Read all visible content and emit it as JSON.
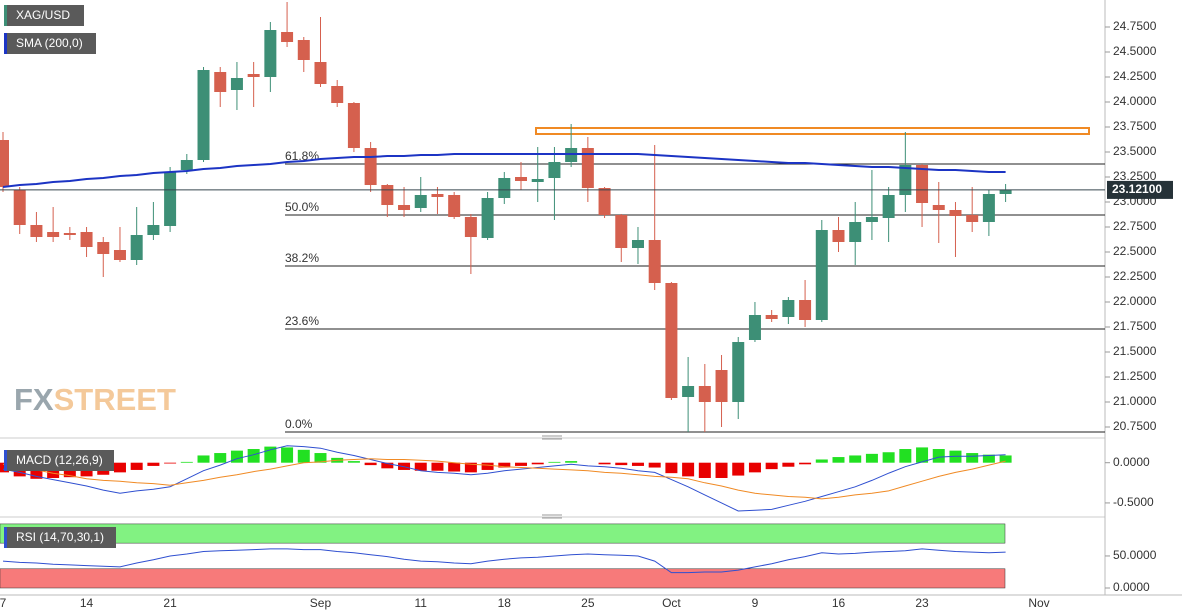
{
  "chart_data": [
    {
      "type": "candlestick",
      "categories": [
        "7",
        null,
        null,
        null,
        null,
        "14",
        null,
        null,
        null,
        null,
        "21",
        null,
        null,
        null,
        null,
        null,
        null,
        null,
        null,
        "Sep",
        null,
        null,
        null,
        null,
        null,
        "11",
        null,
        null,
        null,
        null,
        "18",
        null,
        null,
        null,
        null,
        "25",
        null,
        null,
        null,
        null,
        "Oct",
        null,
        null,
        null,
        null,
        "9",
        null,
        null,
        null,
        null,
        "16",
        null,
        null,
        null,
        null,
        "23",
        null,
        null,
        null,
        null,
        null,
        null,
        "Nov"
      ],
      "series": [
        {
          "name": "XAG/USD",
          "up_color": "#3d8f76",
          "down_color": "#d5604e",
          "open": [
            23.62,
            23.12,
            22.77,
            22.7,
            22.69,
            22.7,
            22.6,
            22.52,
            22.42,
            22.67,
            22.76,
            23.32,
            23.42,
            24.3,
            24.12,
            24.28,
            24.25,
            24.7,
            24.62,
            24.4,
            24.16,
            23.99,
            23.54,
            23.17,
            22.97,
            22.94,
            23.08,
            23.07,
            22.85,
            22.64,
            23.04,
            23.25,
            23.2,
            23.24,
            23.4,
            23.54,
            23.14,
            22.87,
            22.54,
            22.62,
            22.19,
            21.05,
            21.16,
            21.32,
            21.0,
            21.62,
            21.87,
            21.85,
            22.02,
            21.82,
            22.72,
            22.6,
            22.8,
            22.84,
            23.07,
            23.37,
            22.97,
            22.92,
            22.87,
            22.8,
            23.08,
            null,
            null
          ],
          "high": [
            23.7,
            23.15,
            22.9,
            22.95,
            22.75,
            22.75,
            22.65,
            22.75,
            22.95,
            23.0,
            23.35,
            23.48,
            24.35,
            24.35,
            24.4,
            24.4,
            24.8,
            25.0,
            24.65,
            24.85,
            24.22,
            24.0,
            23.6,
            23.18,
            23.15,
            23.25,
            23.15,
            23.1,
            22.88,
            23.1,
            23.3,
            23.4,
            23.55,
            23.55,
            23.78,
            23.65,
            23.15,
            22.88,
            22.75,
            23.57,
            22.2,
            21.45,
            21.38,
            21.47,
            21.65,
            22.0,
            21.92,
            22.05,
            22.22,
            22.82,
            22.85,
            23.0,
            23.32,
            23.15,
            23.7,
            23.38,
            23.2,
            23.0,
            23.15,
            23.12,
            23.18,
            null,
            null
          ],
          "low": [
            23.1,
            22.68,
            22.6,
            22.6,
            22.62,
            22.45,
            22.25,
            22.4,
            22.37,
            22.62,
            22.7,
            23.28,
            23.4,
            23.95,
            23.92,
            23.95,
            24.1,
            24.55,
            24.3,
            24.15,
            23.95,
            23.5,
            23.1,
            22.85,
            22.85,
            22.9,
            22.88,
            22.83,
            22.28,
            22.62,
            22.98,
            23.12,
            23.0,
            22.82,
            23.35,
            23.0,
            22.84,
            22.4,
            22.38,
            22.12,
            21.02,
            20.7,
            20.7,
            20.75,
            20.83,
            21.6,
            21.8,
            21.78,
            21.75,
            21.8,
            22.5,
            22.37,
            22.62,
            22.6,
            22.9,
            22.75,
            22.59,
            22.45,
            22.7,
            22.66,
            23.0,
            null,
            null
          ],
          "close": [
            23.15,
            22.77,
            22.65,
            22.65,
            22.67,
            22.55,
            22.48,
            22.42,
            22.67,
            22.77,
            23.3,
            23.42,
            24.32,
            24.1,
            24.24,
            24.25,
            24.72,
            24.6,
            24.42,
            24.18,
            23.99,
            23.54,
            23.17,
            22.97,
            22.92,
            23.07,
            23.05,
            22.85,
            22.65,
            23.04,
            23.24,
            23.21,
            23.23,
            23.4,
            23.54,
            23.14,
            22.87,
            22.54,
            22.62,
            22.19,
            21.04,
            21.16,
            21.0,
            21.0,
            21.6,
            21.87,
            21.83,
            22.02,
            21.82,
            22.72,
            22.6,
            22.8,
            22.85,
            23.07,
            23.37,
            22.99,
            22.92,
            22.86,
            22.8,
            23.08,
            23.12,
            null,
            null
          ]
        },
        {
          "name": "SMA (200,0)",
          "type": "line",
          "color": "#1c34c4",
          "values": [
            23.15,
            23.17,
            23.18,
            23.2,
            23.21,
            23.23,
            23.24,
            23.26,
            23.27,
            23.29,
            23.3,
            23.31,
            23.33,
            23.34,
            23.36,
            23.37,
            23.38,
            23.4,
            23.41,
            23.43,
            23.44,
            23.45,
            23.45,
            23.46,
            23.46,
            23.47,
            23.47,
            23.48,
            23.48,
            23.48,
            23.48,
            23.48,
            23.48,
            23.48,
            23.48,
            23.48,
            23.48,
            23.48,
            23.48,
            23.47,
            23.46,
            23.45,
            23.44,
            23.43,
            23.42,
            23.41,
            23.4,
            23.39,
            23.39,
            23.38,
            23.37,
            23.36,
            23.35,
            23.35,
            23.34,
            23.33,
            23.32,
            23.32,
            23.31,
            23.3,
            23.3,
            null,
            null
          ]
        }
      ],
      "ylim": [
        20.67,
        25.02
      ],
      "yticks": [
        {
          "value": 20.75,
          "label": "20.7500"
        },
        {
          "value": 21,
          "label": "21.0000"
        },
        {
          "value": 21.25,
          "label": "21.2500"
        },
        {
          "value": 21.5,
          "label": "21.5000"
        },
        {
          "value": 21.75,
          "label": "21.7500"
        },
        {
          "value": 22,
          "label": "22.0000"
        },
        {
          "value": 22.25,
          "label": "22.2500"
        },
        {
          "value": 22.5,
          "label": "22.5000"
        },
        {
          "value": 22.75,
          "label": "22.7500"
        },
        {
          "value": 23,
          "label": "23.0000"
        },
        {
          "value": 23.25,
          "label": "23.2500"
        },
        {
          "value": 23.5,
          "label": "23.5000"
        },
        {
          "value": 23.75,
          "label": "23.7500"
        },
        {
          "value": 24,
          "label": "24.0000"
        },
        {
          "value": 24.25,
          "label": "24.2500"
        },
        {
          "value": 24.5,
          "label": "24.5000"
        },
        {
          "value": 24.75,
          "label": "24.7500"
        }
      ],
      "last_price": {
        "value": 23.121,
        "label": "23.12100"
      },
      "fib_levels": [
        {
          "value": 23.38,
          "label": "61.8%"
        },
        {
          "value": 22.87,
          "label": "50.0%"
        },
        {
          "value": 22.36,
          "label": "38.2%"
        },
        {
          "value": 21.73,
          "label": "23.6%"
        },
        {
          "value": 20.7,
          "label": "0.0%"
        }
      ],
      "zone": {
        "low": 23.68,
        "high": 23.74,
        "color": "#f08a24"
      },
      "watermark": [
        "FX",
        "STREET"
      ]
    },
    {
      "type": "macd",
      "title": "MACD (12,26,9)",
      "histogram": {
        "up_color": "#22e022",
        "down_color": "#e80000",
        "values": [
          -0.12,
          -0.17,
          -0.2,
          -0.19,
          -0.18,
          -0.17,
          -0.15,
          -0.12,
          -0.09,
          -0.04,
          -0.01,
          0.01,
          0.09,
          0.12,
          0.15,
          0.17,
          0.2,
          0.19,
          0.16,
          0.12,
          0.06,
          0.02,
          -0.03,
          -0.07,
          -0.09,
          -0.1,
          -0.1,
          -0.11,
          -0.12,
          -0.09,
          -0.06,
          -0.04,
          -0.02,
          0.01,
          0.02,
          0,
          -0.02,
          -0.03,
          -0.04,
          -0.06,
          -0.13,
          -0.17,
          -0.19,
          -0.19,
          -0.16,
          -0.12,
          -0.08,
          -0.05,
          -0.02,
          0.04,
          0.07,
          0.09,
          0.11,
          0.13,
          0.17,
          0.19,
          0.17,
          0.15,
          0.12,
          0.1,
          0.09,
          null,
          null
        ]
      },
      "series": [
        {
          "color": "#2f4fd0",
          "values": [
            -0.08,
            -0.12,
            -0.17,
            -0.21,
            -0.25,
            -0.29,
            -0.34,
            -0.38,
            -0.35,
            -0.33,
            -0.3,
            -0.2,
            -0.1,
            -0.03,
            0.05,
            0.1,
            0.16,
            0.21,
            0.2,
            0.18,
            0.13,
            0.09,
            0.04,
            -0.01,
            -0.05,
            -0.1,
            -0.12,
            -0.13,
            -0.15,
            -0.13,
            -0.1,
            -0.08,
            -0.06,
            -0.04,
            -0.02,
            -0.04,
            -0.05,
            -0.07,
            -0.1,
            -0.12,
            -0.21,
            -0.3,
            -0.4,
            -0.5,
            -0.6,
            -0.59,
            -0.58,
            -0.53,
            -0.48,
            -0.42,
            -0.36,
            -0.3,
            -0.22,
            -0.13,
            -0.05,
            0.01,
            0.07,
            0.08,
            0.08,
            0.09,
            0.1,
            null,
            null
          ]
        },
        {
          "color": "#f08a24",
          "values": [
            -0.02,
            -0.06,
            -0.09,
            -0.13,
            -0.16,
            -0.2,
            -0.22,
            -0.23,
            -0.25,
            -0.26,
            -0.28,
            -0.25,
            -0.22,
            -0.18,
            -0.15,
            -0.11,
            -0.08,
            -0.04,
            0,
            0.01,
            0.03,
            0.04,
            0.05,
            0.04,
            0.04,
            0.03,
            0.02,
            0,
            -0.02,
            -0.03,
            -0.05,
            -0.06,
            -0.07,
            -0.08,
            -0.09,
            -0.1,
            -0.12,
            -0.13,
            -0.15,
            -0.17,
            -0.18,
            -0.2,
            -0.25,
            -0.29,
            -0.34,
            -0.38,
            -0.4,
            -0.42,
            -0.43,
            -0.45,
            -0.43,
            -0.4,
            -0.38,
            -0.35,
            -0.29,
            -0.23,
            -0.17,
            -0.12,
            -0.08,
            -0.03,
            0.02,
            null,
            null
          ]
        }
      ],
      "ylim": [
        -0.65,
        0.22
      ],
      "yticks": [
        {
          "value": 0,
          "label": "0.0000"
        },
        {
          "value": -0.5,
          "label": "-0.5000"
        }
      ]
    },
    {
      "type": "rsi",
      "title": "RSI (14,70,30,1)",
      "bands": [
        {
          "from": 70,
          "to": 100,
          "color": "#82f282"
        },
        {
          "from": 0,
          "to": 30,
          "color": "#f77a7a"
        }
      ],
      "series": [
        {
          "color": "#2f4fd0",
          "values": [
            42,
            40,
            39,
            37,
            36,
            35,
            34,
            33,
            39,
            44,
            50,
            53,
            57,
            58,
            59,
            60,
            61,
            61,
            60,
            60,
            57,
            55,
            52,
            49,
            45,
            42,
            41,
            39,
            38,
            42,
            45,
            47,
            48,
            50,
            52,
            53,
            52,
            51,
            50,
            42,
            24,
            24,
            25,
            25,
            28,
            33,
            38,
            44,
            49,
            55,
            53,
            54,
            56,
            57,
            58,
            61,
            59,
            57,
            56,
            55,
            56,
            null,
            null
          ]
        }
      ],
      "ylim": [
        0,
        103
      ],
      "yticks": [
        {
          "value": 50,
          "label": "50.0000"
        },
        {
          "value": 0,
          "label": "0.0000"
        }
      ]
    }
  ]
}
